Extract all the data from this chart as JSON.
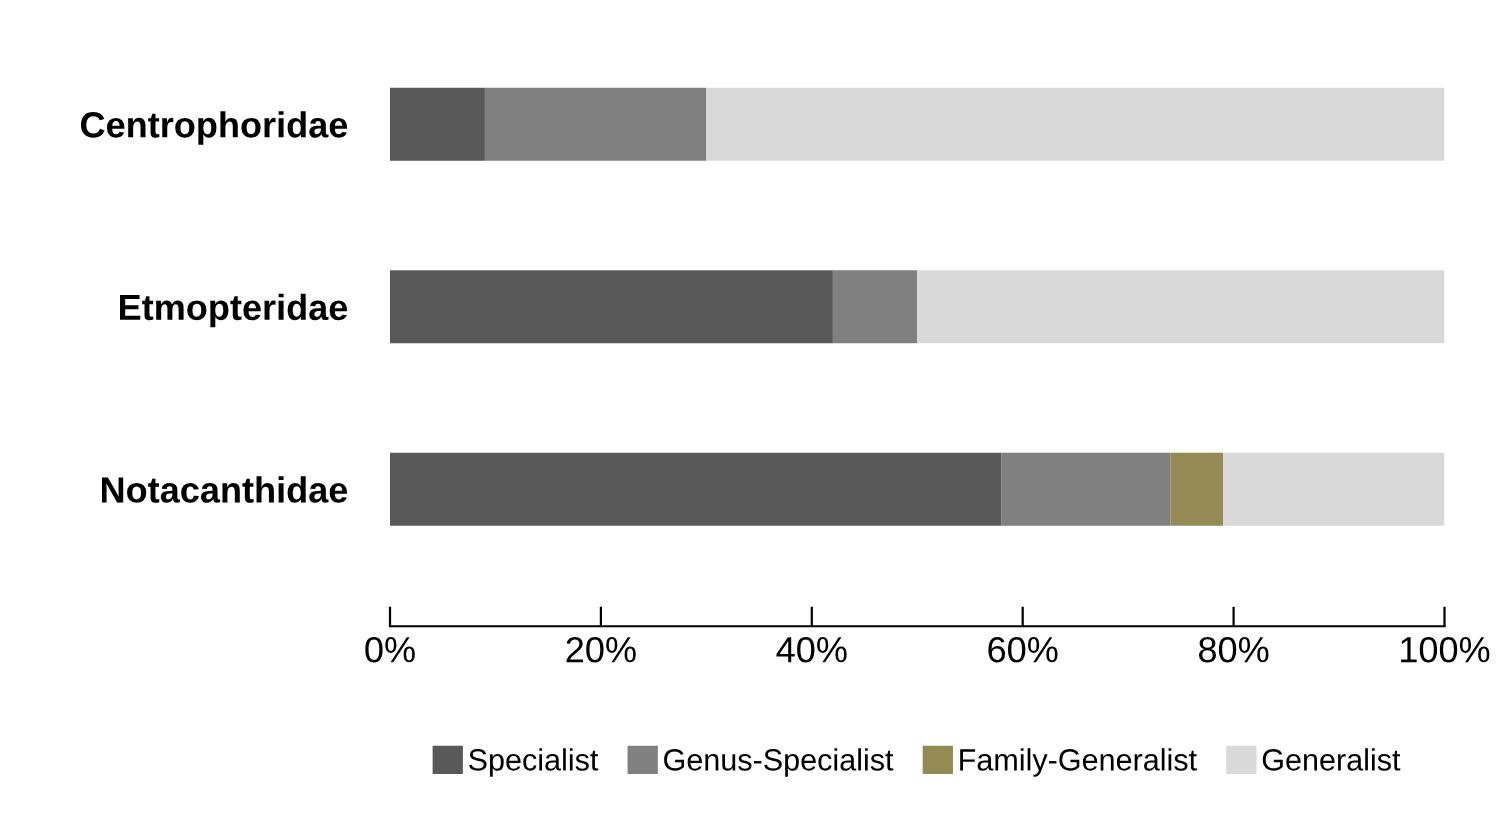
{
  "chart_data": {
    "type": "bar",
    "orientation": "horizontal",
    "stacked": true,
    "categories": [
      "Centrophoridae",
      "Etmopteridae",
      "Notacanthidae"
    ],
    "series": [
      {
        "name": "Specialist",
        "color": "#595959",
        "values": [
          9,
          42,
          58
        ]
      },
      {
        "name": "Genus-Specialist",
        "color": "#808080",
        "values": [
          21,
          8,
          16
        ]
      },
      {
        "name": "Family-Generalist",
        "color": "#948a54",
        "values": [
          0,
          0,
          5
        ]
      },
      {
        "name": "Generalist",
        "color": "#d9d9d9",
        "values": [
          70,
          50,
          21
        ]
      }
    ],
    "xlim": [
      0,
      100
    ],
    "xticks": [
      {
        "value": 0,
        "label": "0%"
      },
      {
        "value": 20,
        "label": "20%"
      },
      {
        "value": 40,
        "label": "40%"
      },
      {
        "value": 60,
        "label": "60%"
      },
      {
        "value": 80,
        "label": "80%"
      },
      {
        "value": 100,
        "label": "100%"
      }
    ],
    "grid": false,
    "legend": "bottom"
  }
}
